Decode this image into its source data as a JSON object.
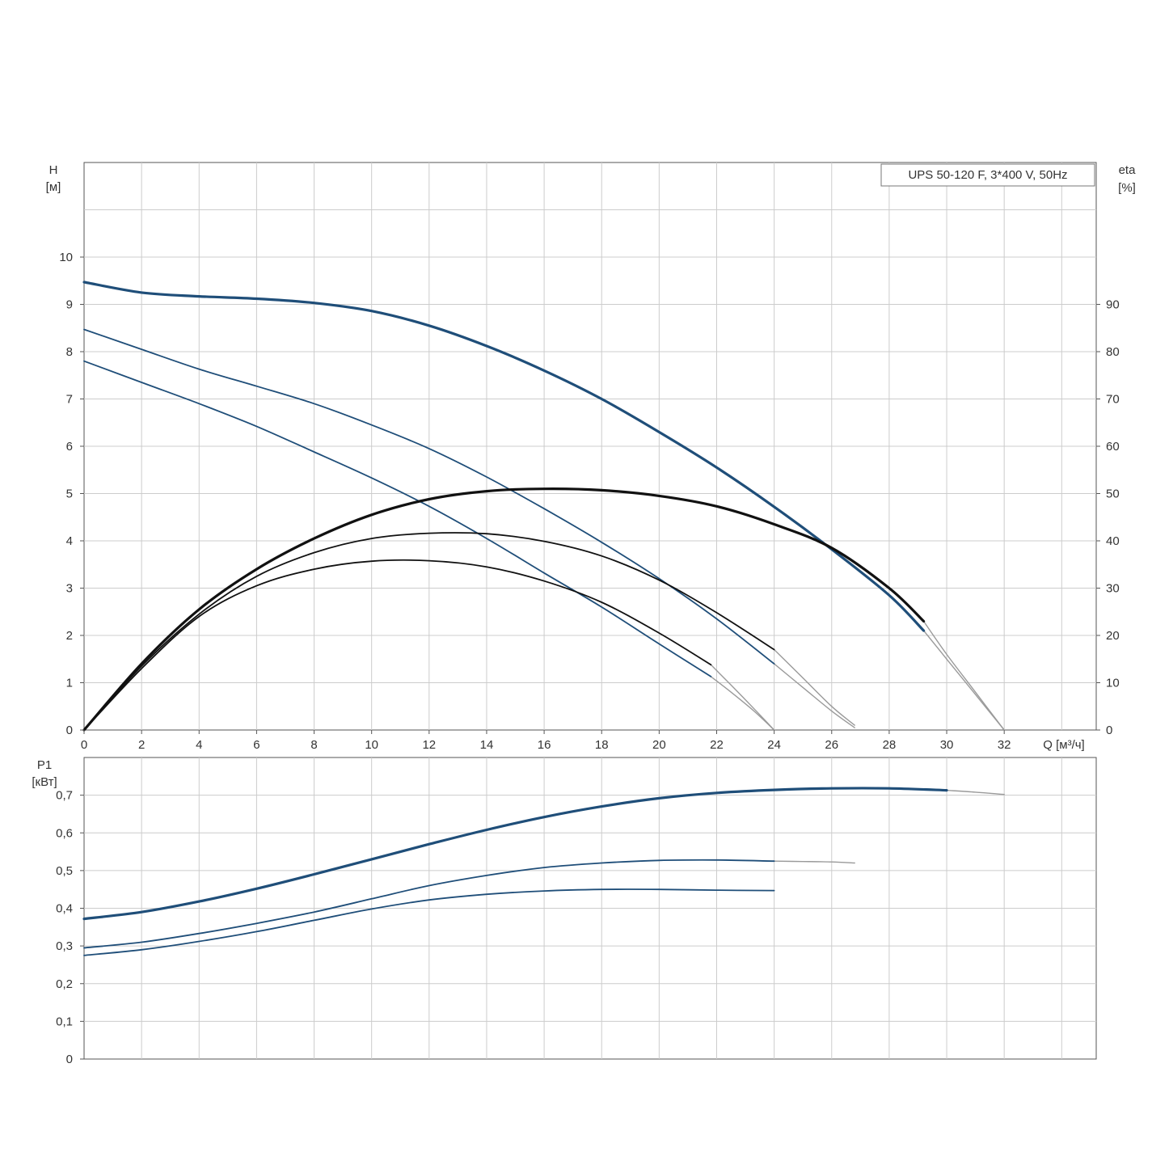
{
  "chart_data": [
    {
      "id": "head",
      "type": "line",
      "title": "UPS 50-120 F, 3*400 V, 50Hz",
      "ylabel": "H",
      "ylabel_unit": "[м]",
      "y2label": "eta",
      "y2label_unit": "[%]",
      "xlabel": "Q [м³/ч]",
      "xlim": [
        0,
        35.2
      ],
      "ylim": [
        0,
        12
      ],
      "y2lim": [
        0,
        120
      ],
      "grid": true,
      "xticks": [
        "0",
        "2",
        "4",
        "6",
        "8",
        "10",
        "12",
        "14",
        "16",
        "18",
        "20",
        "22",
        "24",
        "26",
        "28",
        "30",
        "32"
      ],
      "yticks": [
        "0",
        "1",
        "2",
        "3",
        "4",
        "5",
        "6",
        "7",
        "8",
        "9",
        "10"
      ],
      "y2ticks": [
        "0",
        "10",
        "20",
        "30",
        "40",
        "50",
        "60",
        "70",
        "80",
        "90"
      ],
      "colors": {
        "head": "#1f4e79",
        "eta": "#111111",
        "extension": "#9a9a9a",
        "grid": "#cccccc"
      },
      "series": [
        {
          "kind": "head",
          "weight": "bold",
          "x": [
            0,
            2,
            4,
            6,
            8,
            10,
            12,
            14,
            16,
            18,
            20,
            22,
            24,
            26,
            28,
            29.2
          ],
          "y": [
            9.47,
            9.25,
            9.17,
            9.12,
            9.03,
            8.86,
            8.55,
            8.12,
            7.6,
            7.0,
            6.3,
            5.55,
            4.72,
            3.82,
            2.85,
            2.1
          ]
        },
        {
          "kind": "head",
          "weight": "thin",
          "x": [
            0,
            2,
            4,
            6,
            8,
            10,
            12,
            14,
            16,
            18,
            20,
            22,
            24
          ],
          "y": [
            8.47,
            8.05,
            7.63,
            7.27,
            6.9,
            6.45,
            5.95,
            5.35,
            4.68,
            3.97,
            3.2,
            2.35,
            1.4
          ]
        },
        {
          "kind": "head",
          "weight": "thin",
          "x": [
            0,
            2,
            4,
            6,
            8,
            10,
            12,
            14,
            16,
            18,
            20,
            21.8
          ],
          "y": [
            7.8,
            7.35,
            6.9,
            6.42,
            5.88,
            5.33,
            4.73,
            4.05,
            3.32,
            2.6,
            1.82,
            1.13
          ]
        },
        {
          "kind": "eta",
          "weight": "bold",
          "x": [
            0,
            2,
            4,
            6,
            8,
            10,
            12,
            14,
            16,
            18,
            20,
            22,
            24,
            26,
            28,
            29.2
          ],
          "y": [
            0,
            14,
            25.5,
            34,
            40.5,
            45.5,
            48.8,
            50.5,
            51,
            50.7,
            49.5,
            47.3,
            43.5,
            38.5,
            30,
            23
          ]
        },
        {
          "kind": "eta",
          "weight": "thin",
          "x": [
            0,
            2,
            4,
            6,
            8,
            10,
            12,
            14,
            16,
            18,
            20,
            22,
            24
          ],
          "y": [
            0,
            13.5,
            24.5,
            32.5,
            37.5,
            40.5,
            41.6,
            41.5,
            39.9,
            36.8,
            31.7,
            24.8,
            17
          ]
        },
        {
          "kind": "eta",
          "weight": "thin",
          "x": [
            0,
            2,
            4,
            6,
            8,
            10,
            12,
            14,
            16,
            18,
            20,
            21.8
          ],
          "y": [
            0,
            13,
            24,
            30.5,
            34,
            35.7,
            35.8,
            34.5,
            31.5,
            27,
            20.5,
            13.8
          ]
        },
        {
          "kind": "extension",
          "x": [
            29.2,
            30,
            31,
            32
          ],
          "y": [
            2.1,
            1.5,
            0.75,
            0
          ]
        },
        {
          "kind": "extension",
          "x": [
            24,
            25,
            26,
            26.8
          ],
          "y": [
            1.4,
            0.9,
            0.4,
            0.05
          ]
        },
        {
          "kind": "extension",
          "x": [
            21.8,
            22.5,
            23.3,
            24
          ],
          "y": [
            1.13,
            0.8,
            0.4,
            0
          ]
        },
        {
          "kind": "extension",
          "x": [
            29.2,
            30,
            31,
            32
          ],
          "y": [
            2.3,
            1.6,
            0.8,
            0
          ]
        },
        {
          "kind": "extension",
          "x": [
            24,
            25,
            26,
            26.8
          ],
          "y": [
            1.7,
            1.1,
            0.5,
            0.1
          ]
        },
        {
          "kind": "extension",
          "x": [
            21.8,
            22.5,
            23.3,
            24
          ],
          "y": [
            1.38,
            0.95,
            0.45,
            0
          ]
        }
      ]
    },
    {
      "id": "power",
      "type": "line",
      "ylabel": "P1",
      "ylabel_unit": "[кВт]",
      "xlim": [
        0,
        35.2
      ],
      "ylim": [
        0,
        0.8
      ],
      "grid": true,
      "yticks": [
        "0",
        "0,1",
        "0,2",
        "0,3",
        "0,4",
        "0,5",
        "0,6",
        "0,7"
      ],
      "colors": {
        "power": "#1f4e79",
        "extension": "#9a9a9a",
        "grid": "#cccccc"
      },
      "series": [
        {
          "kind": "power",
          "weight": "bold",
          "x": [
            0,
            2,
            4,
            6,
            8,
            10,
            12,
            14,
            16,
            18,
            20,
            22,
            24,
            26,
            28,
            30
          ],
          "y": [
            0.372,
            0.39,
            0.418,
            0.452,
            0.49,
            0.53,
            0.57,
            0.608,
            0.642,
            0.67,
            0.692,
            0.706,
            0.714,
            0.718,
            0.718,
            0.713
          ]
        },
        {
          "kind": "power",
          "weight": "thin",
          "x": [
            0,
            2,
            4,
            6,
            8,
            10,
            12,
            14,
            16,
            18,
            20,
            22,
            24
          ],
          "y": [
            0.295,
            0.31,
            0.333,
            0.36,
            0.39,
            0.425,
            0.46,
            0.487,
            0.508,
            0.52,
            0.527,
            0.528,
            0.525
          ]
        },
        {
          "kind": "power",
          "weight": "thin",
          "x": [
            0,
            2,
            4,
            6,
            8,
            10,
            12,
            14,
            16,
            18,
            20,
            22,
            24
          ],
          "y": [
            0.275,
            0.29,
            0.312,
            0.338,
            0.368,
            0.398,
            0.422,
            0.437,
            0.446,
            0.45,
            0.45,
            0.448,
            0.447
          ]
        },
        {
          "kind": "extension",
          "x": [
            30,
            31,
            32
          ],
          "y": [
            0.713,
            0.708,
            0.702
          ]
        },
        {
          "kind": "extension",
          "x": [
            24,
            25,
            26,
            26.8
          ],
          "y": [
            0.525,
            0.524,
            0.523,
            0.52
          ]
        }
      ]
    }
  ]
}
